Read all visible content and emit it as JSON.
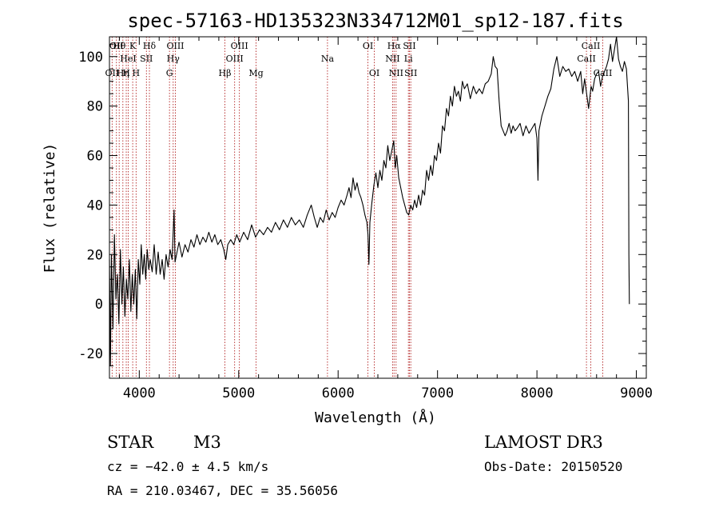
{
  "chart_data": {
    "type": "line",
    "title": "spec-57163-HD135323N334712M01_sp12-187.fits",
    "xlabel": "Wavelength (Å)",
    "ylabel": "Flux (relative)",
    "xlim": [
      3700,
      9100
    ],
    "ylim": [
      -30,
      108
    ],
    "xticks": [
      4000,
      5000,
      6000,
      7000,
      8000,
      9000
    ],
    "yticks": [
      -20,
      0,
      20,
      40,
      60,
      80,
      100
    ],
    "series": [
      {
        "name": "spectrum",
        "points": [
          [
            3700,
            18
          ],
          [
            3710,
            -25
          ],
          [
            3720,
            20
          ],
          [
            3735,
            -10
          ],
          [
            3750,
            28
          ],
          [
            3765,
            2
          ],
          [
            3780,
            12
          ],
          [
            3795,
            -8
          ],
          [
            3810,
            22
          ],
          [
            3825,
            0
          ],
          [
            3840,
            15
          ],
          [
            3855,
            -5
          ],
          [
            3870,
            10
          ],
          [
            3885,
            2
          ],
          [
            3900,
            18
          ],
          [
            3915,
            -3
          ],
          [
            3930,
            12
          ],
          [
            3945,
            0
          ],
          [
            3960,
            14
          ],
          [
            3975,
            -6
          ],
          [
            3990,
            18
          ],
          [
            4005,
            8
          ],
          [
            4020,
            24
          ],
          [
            4035,
            12
          ],
          [
            4050,
            20
          ],
          [
            4065,
            10
          ],
          [
            4080,
            22
          ],
          [
            4095,
            14
          ],
          [
            4110,
            18
          ],
          [
            4130,
            13
          ],
          [
            4150,
            24
          ],
          [
            4170,
            12
          ],
          [
            4190,
            21
          ],
          [
            4210,
            12
          ],
          [
            4230,
            18
          ],
          [
            4250,
            10
          ],
          [
            4270,
            20
          ],
          [
            4290,
            15
          ],
          [
            4310,
            22
          ],
          [
            4330,
            18
          ],
          [
            4350,
            38
          ],
          [
            4360,
            17
          ],
          [
            4380,
            21
          ],
          [
            4400,
            25
          ],
          [
            4430,
            19
          ],
          [
            4460,
            24
          ],
          [
            4490,
            21
          ],
          [
            4520,
            26
          ],
          [
            4550,
            23
          ],
          [
            4580,
            28
          ],
          [
            4610,
            24
          ],
          [
            4640,
            27
          ],
          [
            4670,
            25
          ],
          [
            4700,
            29
          ],
          [
            4730,
            25
          ],
          [
            4760,
            28
          ],
          [
            4790,
            24
          ],
          [
            4820,
            26
          ],
          [
            4850,
            22
          ],
          [
            4870,
            18
          ],
          [
            4890,
            24
          ],
          [
            4920,
            26
          ],
          [
            4950,
            24
          ],
          [
            4980,
            28
          ],
          [
            5010,
            25
          ],
          [
            5050,
            29
          ],
          [
            5090,
            26
          ],
          [
            5130,
            32
          ],
          [
            5170,
            27
          ],
          [
            5210,
            30
          ],
          [
            5250,
            28
          ],
          [
            5290,
            31
          ],
          [
            5330,
            29
          ],
          [
            5370,
            33
          ],
          [
            5410,
            30
          ],
          [
            5450,
            34
          ],
          [
            5490,
            31
          ],
          [
            5530,
            35
          ],
          [
            5570,
            32
          ],
          [
            5610,
            34
          ],
          [
            5650,
            31
          ],
          [
            5690,
            36
          ],
          [
            5730,
            40
          ],
          [
            5760,
            35
          ],
          [
            5790,
            31
          ],
          [
            5820,
            35
          ],
          [
            5850,
            33
          ],
          [
            5880,
            38
          ],
          [
            5910,
            34
          ],
          [
            5940,
            37
          ],
          [
            5970,
            35
          ],
          [
            6000,
            39
          ],
          [
            6030,
            42
          ],
          [
            6060,
            40
          ],
          [
            6090,
            44
          ],
          [
            6110,
            47
          ],
          [
            6130,
            43
          ],
          [
            6150,
            51
          ],
          [
            6170,
            46
          ],
          [
            6190,
            49
          ],
          [
            6210,
            45
          ],
          [
            6230,
            43
          ],
          [
            6250,
            40
          ],
          [
            6270,
            36
          ],
          [
            6290,
            33
          ],
          [
            6300,
            28
          ],
          [
            6310,
            16
          ],
          [
            6320,
            33
          ],
          [
            6340,
            41
          ],
          [
            6360,
            48
          ],
          [
            6380,
            53
          ],
          [
            6400,
            47
          ],
          [
            6420,
            54
          ],
          [
            6440,
            50
          ],
          [
            6460,
            58
          ],
          [
            6480,
            55
          ],
          [
            6500,
            64
          ],
          [
            6520,
            58
          ],
          [
            6540,
            62
          ],
          [
            6560,
            66
          ],
          [
            6575,
            55
          ],
          [
            6590,
            60
          ],
          [
            6610,
            51
          ],
          [
            6630,
            47
          ],
          [
            6650,
            43
          ],
          [
            6670,
            40
          ],
          [
            6690,
            37
          ],
          [
            6710,
            36
          ],
          [
            6730,
            40
          ],
          [
            6750,
            38
          ],
          [
            6770,
            42
          ],
          [
            6790,
            39
          ],
          [
            6810,
            44
          ],
          [
            6830,
            40
          ],
          [
            6850,
            46
          ],
          [
            6870,
            44
          ],
          [
            6890,
            54
          ],
          [
            6910,
            50
          ],
          [
            6930,
            56
          ],
          [
            6950,
            52
          ],
          [
            6970,
            60
          ],
          [
            6990,
            58
          ],
          [
            7010,
            65
          ],
          [
            7030,
            61
          ],
          [
            7050,
            72
          ],
          [
            7070,
            70
          ],
          [
            7090,
            79
          ],
          [
            7110,
            76
          ],
          [
            7130,
            84
          ],
          [
            7150,
            80
          ],
          [
            7170,
            88
          ],
          [
            7190,
            84
          ],
          [
            7210,
            86
          ],
          [
            7230,
            82
          ],
          [
            7250,
            90
          ],
          [
            7270,
            87
          ],
          [
            7300,
            89
          ],
          [
            7330,
            83
          ],
          [
            7360,
            88
          ],
          [
            7390,
            85
          ],
          [
            7420,
            87
          ],
          [
            7450,
            85
          ],
          [
            7480,
            89
          ],
          [
            7510,
            90
          ],
          [
            7540,
            93
          ],
          [
            7560,
            100
          ],
          [
            7580,
            96
          ],
          [
            7600,
            95
          ],
          [
            7620,
            82
          ],
          [
            7640,
            72
          ],
          [
            7660,
            70
          ],
          [
            7680,
            68
          ],
          [
            7700,
            70
          ],
          [
            7720,
            73
          ],
          [
            7740,
            69
          ],
          [
            7760,
            72
          ],
          [
            7780,
            70
          ],
          [
            7800,
            71
          ],
          [
            7830,
            73
          ],
          [
            7860,
            68
          ],
          [
            7890,
            72
          ],
          [
            7920,
            69
          ],
          [
            7950,
            71
          ],
          [
            7980,
            73
          ],
          [
            8000,
            67
          ],
          [
            8010,
            50
          ],
          [
            8020,
            70
          ],
          [
            8050,
            76
          ],
          [
            8080,
            80
          ],
          [
            8110,
            84
          ],
          [
            8140,
            87
          ],
          [
            8170,
            95
          ],
          [
            8200,
            100
          ],
          [
            8230,
            92
          ],
          [
            8260,
            96
          ],
          [
            8290,
            94
          ],
          [
            8320,
            95
          ],
          [
            8350,
            92
          ],
          [
            8380,
            94
          ],
          [
            8410,
            90
          ],
          [
            8440,
            94
          ],
          [
            8460,
            85
          ],
          [
            8480,
            91
          ],
          [
            8500,
            85
          ],
          [
            8520,
            79
          ],
          [
            8545,
            88
          ],
          [
            8560,
            86
          ],
          [
            8580,
            91
          ],
          [
            8600,
            93
          ],
          [
            8620,
            94
          ],
          [
            8640,
            88
          ],
          [
            8660,
            92
          ],
          [
            8680,
            94
          ],
          [
            8700,
            96
          ],
          [
            8720,
            99
          ],
          [
            8740,
            105
          ],
          [
            8760,
            98
          ],
          [
            8780,
            103
          ],
          [
            8800,
            108
          ],
          [
            8820,
            99
          ],
          [
            8840,
            96
          ],
          [
            8860,
            94
          ],
          [
            8880,
            98
          ],
          [
            8900,
            95
          ],
          [
            8920,
            82
          ],
          [
            8925,
            20
          ],
          [
            8930,
            0
          ]
        ]
      }
    ],
    "lines": [
      {
        "wl": 3727,
        "labels": [
          "OII"
        ],
        "row": 3
      },
      {
        "wl": 3770,
        "labels": [
          "OII"
        ],
        "row": 1
      },
      {
        "wl": 3798,
        "labels": [
          "Hθ"
        ],
        "row": 1
      },
      {
        "wl": 3835,
        "labels": [
          "Hη"
        ],
        "row": 3
      },
      {
        "wl": 3869,
        "labels": [
          "H"
        ],
        "row": 3
      },
      {
        "wl": 3889,
        "labels": [
          "HeI"
        ],
        "row": 2
      },
      {
        "wl": 3934,
        "labels": [
          "K"
        ],
        "row": 1
      },
      {
        "wl": 3968,
        "labels": [
          "H"
        ],
        "row": 3
      },
      {
        "wl": 4072,
        "labels": [
          "SII"
        ],
        "row": 2
      },
      {
        "wl": 4102,
        "labels": [
          "Hδ"
        ],
        "row": 1
      },
      {
        "wl": 4304,
        "labels": [
          "G"
        ],
        "row": 3
      },
      {
        "wl": 4341,
        "labels": [
          "Hγ"
        ],
        "row": 2
      },
      {
        "wl": 4363,
        "labels": [
          "OIII"
        ],
        "row": 1
      },
      {
        "wl": 4861,
        "labels": [
          "Hβ"
        ],
        "row": 3
      },
      {
        "wl": 4959,
        "labels": [
          "OIII"
        ],
        "row": 2
      },
      {
        "wl": 5007,
        "labels": [
          "OIII"
        ],
        "row": 1
      },
      {
        "wl": 5175,
        "labels": [
          "Mg"
        ],
        "row": 3
      },
      {
        "wl": 5893,
        "labels": [
          "Na"
        ],
        "row": 2
      },
      {
        "wl": 6300,
        "labels": [
          "OI"
        ],
        "row": 1
      },
      {
        "wl": 6364,
        "labels": [
          "OI"
        ],
        "row": 3
      },
      {
        "wl": 6548,
        "labels": [
          "NII"
        ],
        "row": 2
      },
      {
        "wl": 6563,
        "labels": [
          "Hα"
        ],
        "row": 1
      },
      {
        "wl": 6583,
        "labels": [
          "NII"
        ],
        "row": 3
      },
      {
        "wl": 6707,
        "labels": [
          "Li"
        ],
        "row": 2
      },
      {
        "wl": 6717,
        "labels": [
          "SII"
        ],
        "row": 1
      },
      {
        "wl": 6731,
        "labels": [
          "SII"
        ],
        "row": 3
      },
      {
        "wl": 8498,
        "labels": [
          "CaII"
        ],
        "row": 2
      },
      {
        "wl": 8542,
        "labels": [
          "CaII"
        ],
        "row": 1
      },
      {
        "wl": 8662,
        "labels": [
          "CaII"
        ],
        "row": 3
      }
    ]
  },
  "info": {
    "class": "STAR",
    "subclass": "M3",
    "survey": "LAMOST DR3",
    "cz": "cz = −42.0 ± 4.5 km/s",
    "obs_date": "Obs-Date: 20150520",
    "radec": "RA = 210.03467, DEC =  35.56056"
  }
}
